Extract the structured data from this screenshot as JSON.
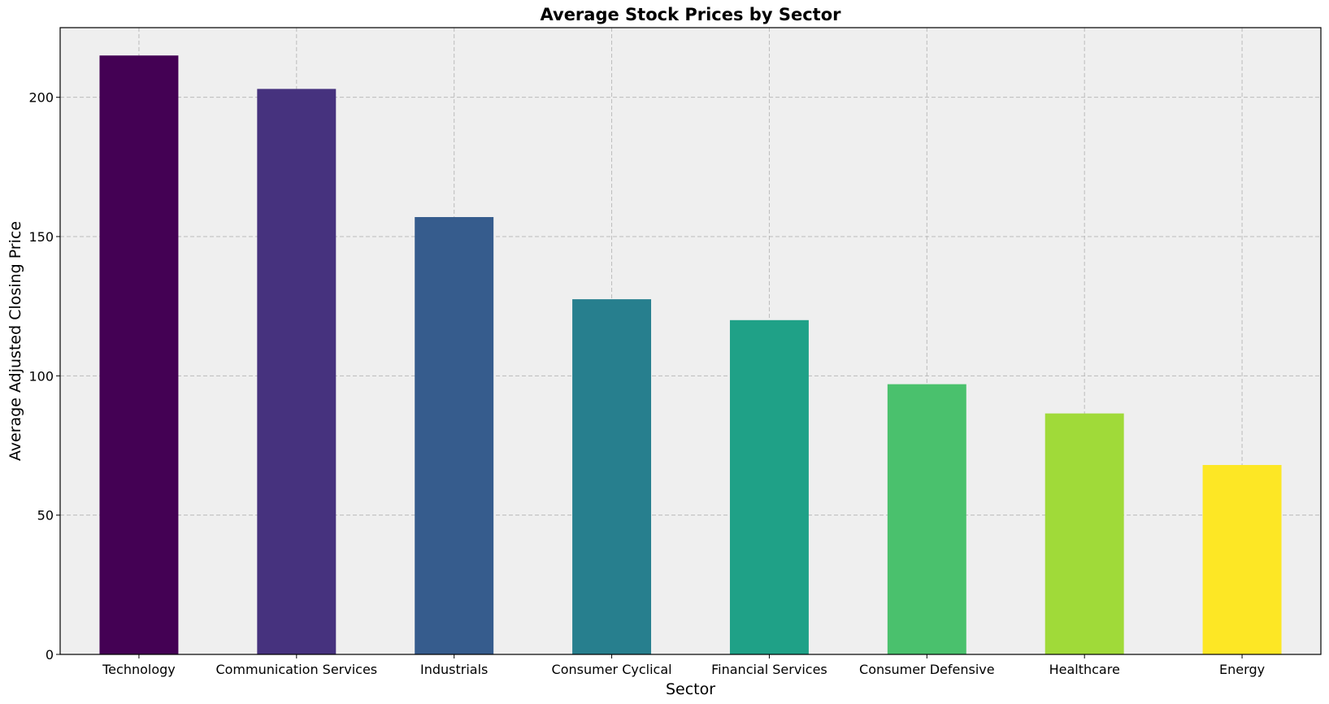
{
  "chart_data": {
    "type": "bar",
    "title": "Average Stock Prices by Sector",
    "xlabel": "Sector",
    "ylabel": "Average Adjusted Closing Price",
    "categories": [
      "Technology",
      "Communication Services",
      "Industrials",
      "Consumer Cyclical",
      "Financial Services",
      "Consumer Defensive",
      "Healthcare",
      "Energy"
    ],
    "values": [
      215,
      203,
      157,
      127.5,
      120,
      97,
      86.5,
      68
    ],
    "colors": [
      "#440154",
      "#46327e",
      "#365c8d",
      "#277f8e",
      "#1fa187",
      "#4ac16d",
      "#a0da39",
      "#fde725"
    ],
    "ylim": [
      0,
      225
    ],
    "yticks": [
      0,
      50,
      100,
      150,
      200
    ],
    "grid": true,
    "background": "#efefef"
  }
}
